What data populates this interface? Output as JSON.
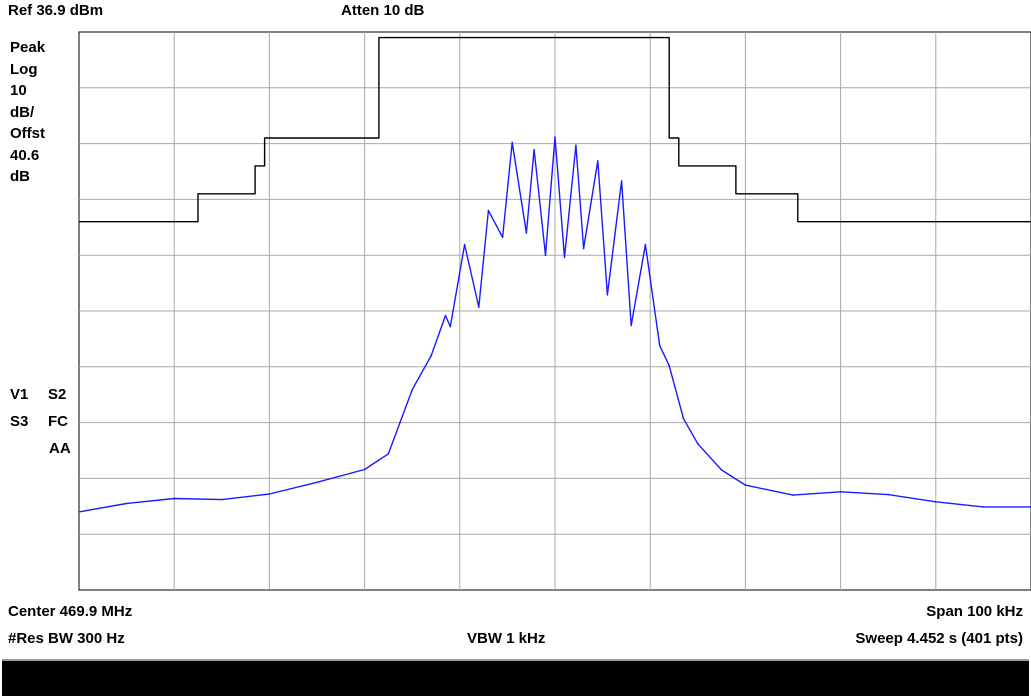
{
  "header": {
    "ref_level": "Ref 36.9 dBm",
    "attenuation": "Atten 10 dB"
  },
  "side_labels": {
    "detector": "Peak",
    "scale_type": "Log",
    "scale_value": "10",
    "scale_unit": "dB/",
    "offset_label": "Offst",
    "offset_value": "40.6",
    "offset_unit": "dB",
    "flags_row1_a": "V1",
    "flags_row1_b": "S2",
    "flags_row2_a": "S3",
    "flags_row2_b": "FC",
    "flags_row3": "AA"
  },
  "footer": {
    "center": "Center 469.9 MHz",
    "span": "Span 100 kHz",
    "rbw": "#Res BW 300 Hz",
    "vbw": "VBW 1 kHz",
    "sweep": "Sweep 4.452 s (401 pts)"
  },
  "colors": {
    "trace": "#1a1aff",
    "mask": "#000000",
    "grid": "#a8a8a8",
    "message_bar": "#000000"
  },
  "chart_data": {
    "type": "line",
    "title": "",
    "xlabel": "",
    "ylabel": "",
    "xlim": [
      469.85,
      469.95
    ],
    "ylim": [
      -63.1,
      36.9
    ],
    "x_unit": "MHz",
    "y_unit": "dBm",
    "grid": true,
    "divisions": {
      "x": 10,
      "y": 10
    },
    "series": [
      {
        "kind": "trace",
        "x": [
          469.85,
          469.855,
          469.86,
          469.865,
          469.87,
          469.875,
          469.88,
          469.8825,
          469.885,
          469.887,
          469.8885,
          469.889,
          469.8905,
          469.892,
          469.893,
          469.8945,
          469.8955,
          469.897,
          469.8978,
          469.899,
          469.9,
          469.901,
          469.9022,
          469.903,
          469.9045,
          469.9055,
          469.907,
          469.908,
          469.9095,
          469.911,
          469.912,
          469.9135,
          469.915,
          469.9175,
          469.92,
          469.925,
          469.93,
          469.935,
          469.94,
          469.945,
          469.95
        ],
        "y": [
          -49.1,
          -47.6,
          -46.7,
          -46.9,
          -45.9,
          -43.8,
          -41.5,
          -38.7,
          -27.2,
          -21.1,
          -13.9,
          -15.9,
          -1.2,
          -12.4,
          4.9,
          0.1,
          17.1,
          0.9,
          15.8,
          -3.1,
          18.1,
          -3.5,
          16.6,
          -1.9,
          13.8,
          -10.2,
          10.2,
          -15.7,
          -1.2,
          -19.3,
          -22.9,
          -32.4,
          -36.9,
          -41.6,
          -44.3,
          -46.1,
          -45.5,
          -46.0,
          -47.3,
          -48.2,
          -48.2
        ]
      },
      {
        "kind": "mask",
        "x": [
          469.85,
          469.8625,
          469.8625,
          469.8685,
          469.8685,
          469.8695,
          469.8695,
          469.8815,
          469.8815,
          469.8875,
          469.8875,
          469.9,
          469.9,
          469.912,
          469.912,
          469.913,
          469.913,
          469.919,
          469.919,
          469.9255,
          469.9255,
          469.95
        ],
        "y": [
          2.9,
          2.9,
          7.9,
          7.9,
          12.9,
          12.9,
          17.9,
          17.9,
          35.9,
          35.9,
          35.9,
          35.9,
          35.9,
          35.9,
          17.9,
          17.9,
          12.9,
          12.9,
          7.9,
          7.9,
          2.9,
          2.9
        ]
      }
    ]
  }
}
